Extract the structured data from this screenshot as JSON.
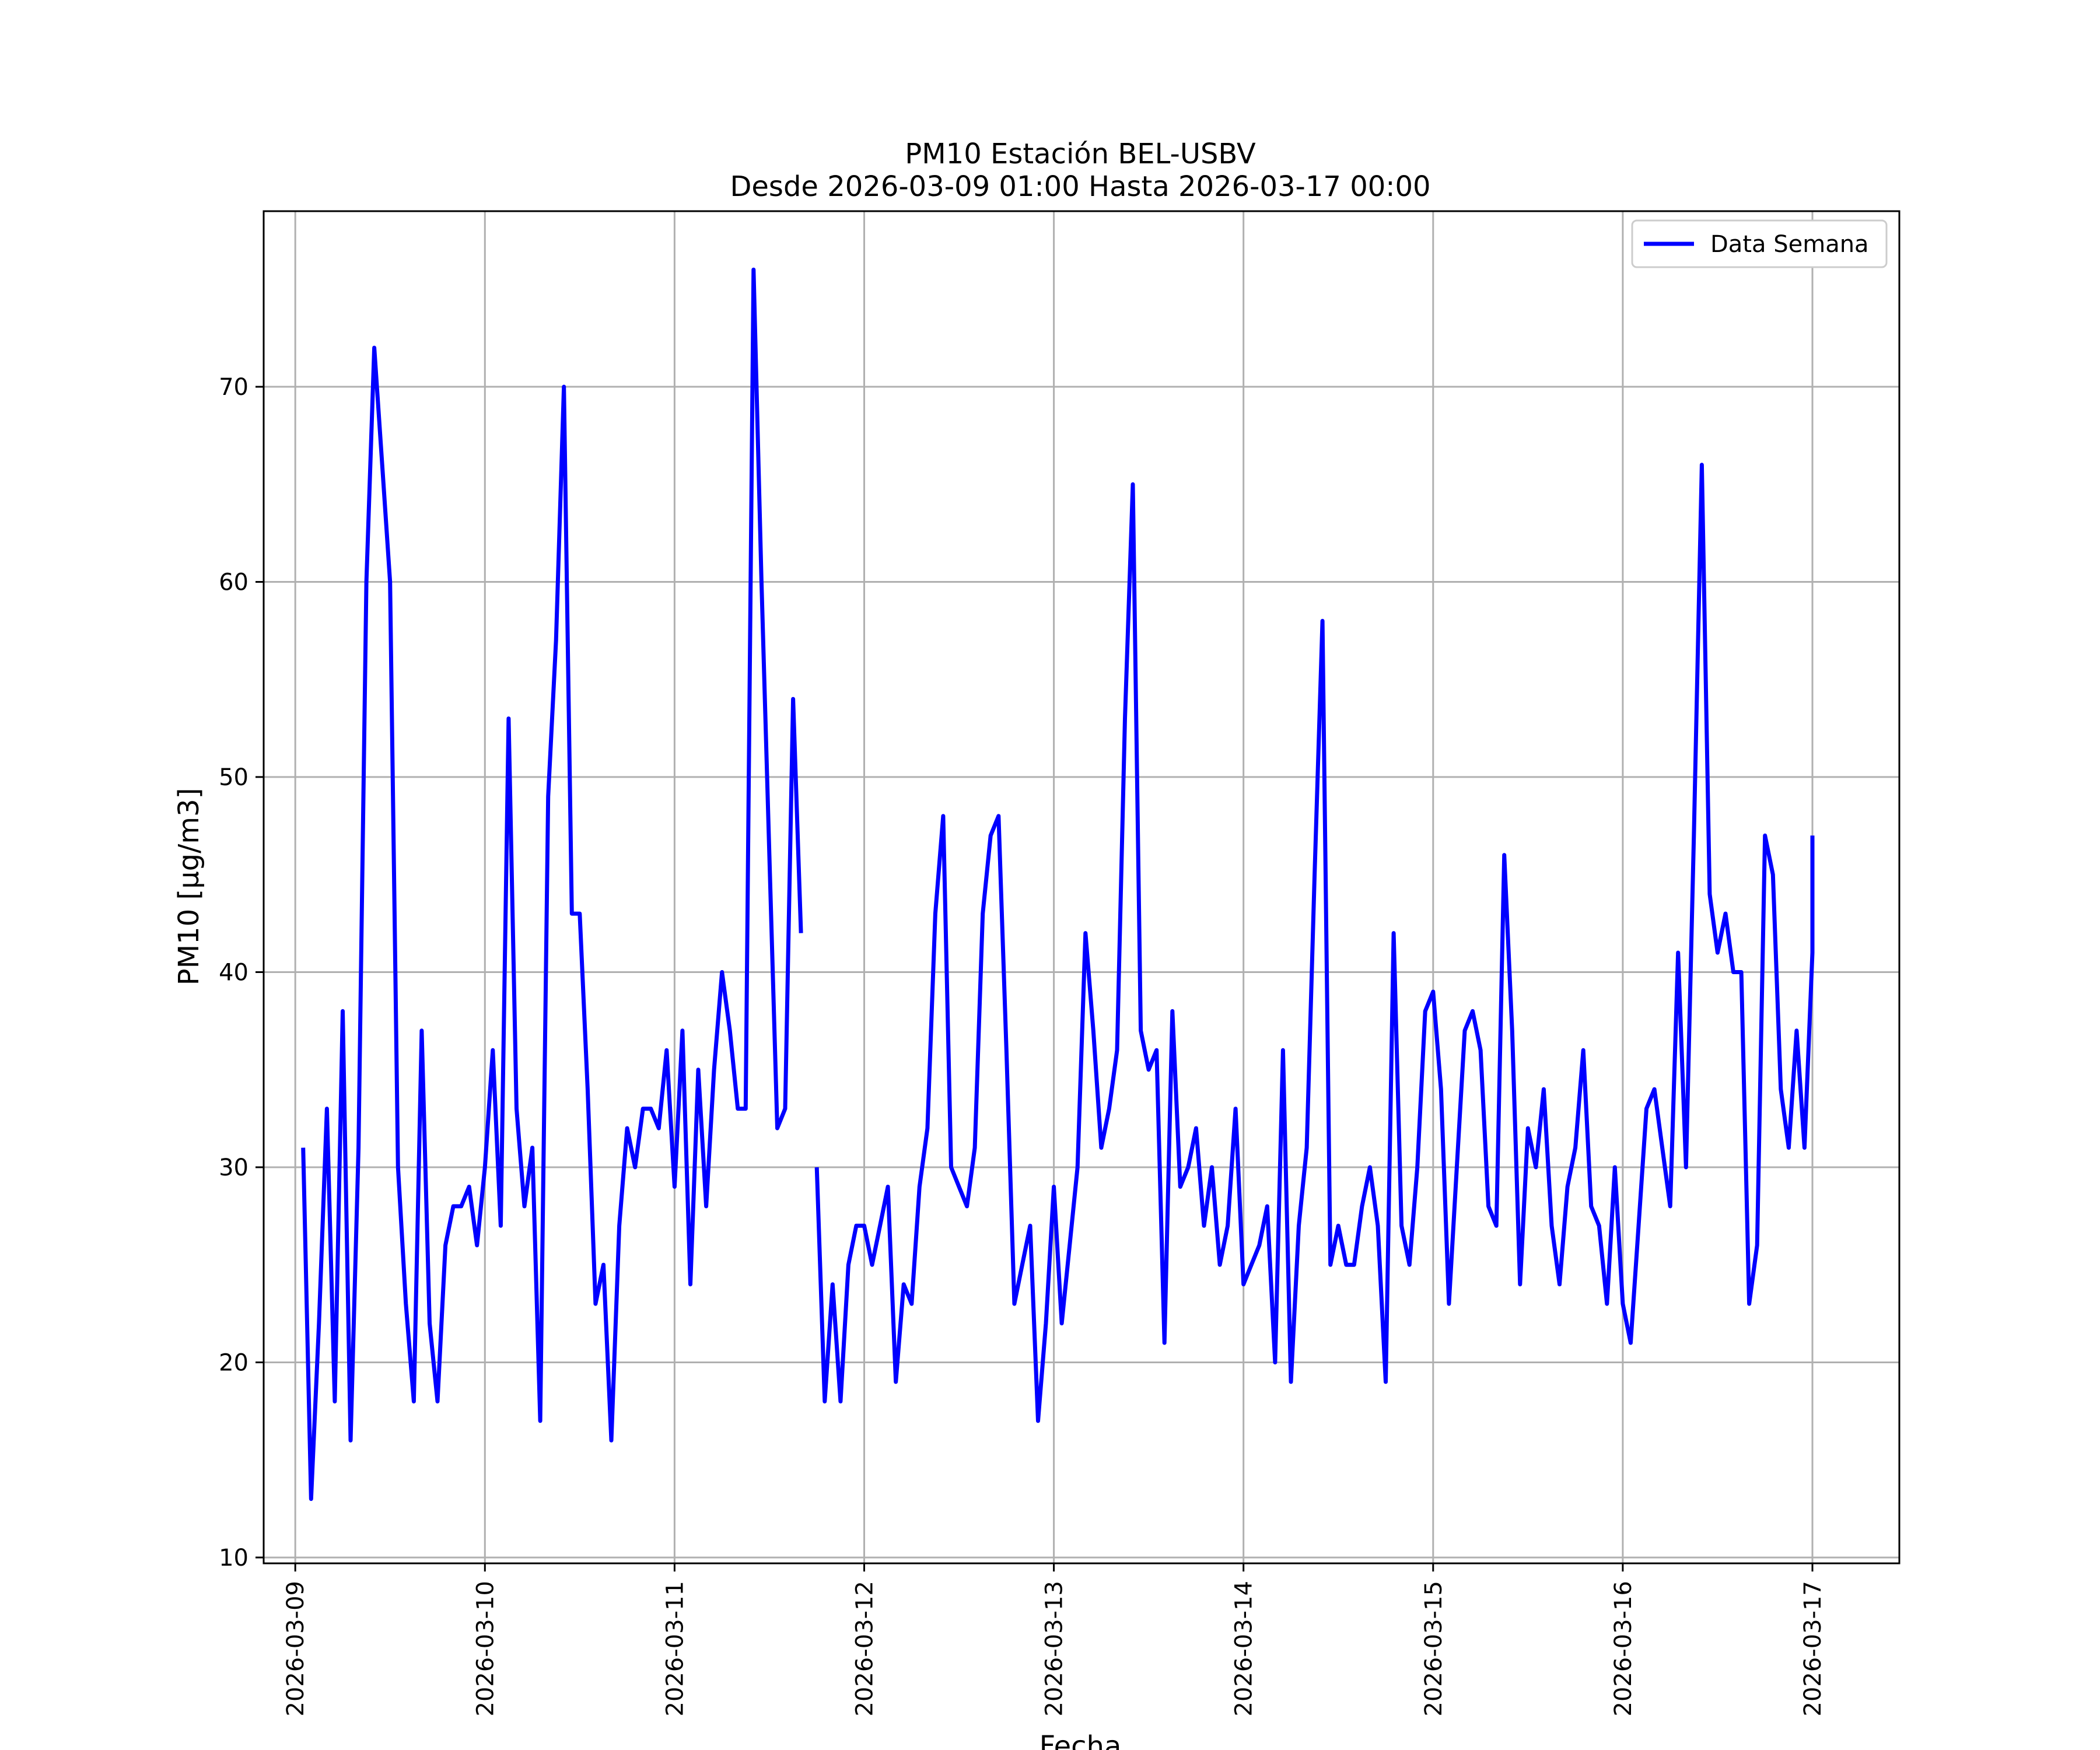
{
  "chart_data": {
    "type": "line",
    "title": "PM10 Estación BEL-USBV",
    "subtitle": "Desde 2026-03-09 01:00 Hasta 2026-03-17 00:00",
    "xlabel": "Fecha",
    "ylabel": "PM10 [μg/m3]",
    "ylim": [
      9.7,
      79
    ],
    "xlim": [
      "2026-03-08 20:00",
      "2026-03-17 11:00"
    ],
    "grid": true,
    "legend_position": "upper right",
    "x_ticks": [
      "2026-03-09",
      "2026-03-10",
      "2026-03-11",
      "2026-03-12",
      "2026-03-13",
      "2026-03-14",
      "2026-03-15",
      "2026-03-16",
      "2026-03-17"
    ],
    "y_ticks": [
      10,
      20,
      30,
      40,
      50,
      60,
      70
    ],
    "series": [
      {
        "name": "Data Semana",
        "color": "#0000ff",
        "points": [
          [
            "2026-03-09 01:00",
            31
          ],
          [
            "2026-03-09 02:00",
            13
          ],
          [
            "2026-03-09 03:00",
            22
          ],
          [
            "2026-03-09 04:00",
            33
          ],
          [
            "2026-03-09 05:00",
            18
          ],
          [
            "2026-03-09 06:00",
            38
          ],
          [
            "2026-03-09 07:00",
            16
          ],
          [
            "2026-03-09 08:00",
            31
          ],
          [
            "2026-03-09 09:00",
            60
          ],
          [
            "2026-03-09 10:00",
            72
          ],
          [
            "2026-03-09 11:00",
            66
          ],
          [
            "2026-03-09 12:00",
            60
          ],
          [
            "2026-03-09 13:00",
            30
          ],
          [
            "2026-03-09 14:00",
            23
          ],
          [
            "2026-03-09 15:00",
            18
          ],
          [
            "2026-03-09 16:00",
            37
          ],
          [
            "2026-03-09 17:00",
            22
          ],
          [
            "2026-03-09 18:00",
            18
          ],
          [
            "2026-03-09 19:00",
            26
          ],
          [
            "2026-03-09 20:00",
            28
          ],
          [
            "2026-03-09 21:00",
            28
          ],
          [
            "2026-03-09 22:00",
            29
          ],
          [
            "2026-03-09 23:00",
            26
          ],
          [
            "2026-03-10 00:00",
            30
          ],
          [
            "2026-03-10 01:00",
            36
          ],
          [
            "2026-03-10 02:00",
            27
          ],
          [
            "2026-03-10 03:00",
            53
          ],
          [
            "2026-03-10 04:00",
            33
          ],
          [
            "2026-03-10 05:00",
            28
          ],
          [
            "2026-03-10 06:00",
            31
          ],
          [
            "2026-03-10 07:00",
            17
          ],
          [
            "2026-03-10 08:00",
            49
          ],
          [
            "2026-03-10 09:00",
            57
          ],
          [
            "2026-03-10 10:00",
            70
          ],
          [
            "2026-03-10 11:00",
            43
          ],
          [
            "2026-03-10 12:00",
            43
          ],
          [
            "2026-03-10 13:00",
            34
          ],
          [
            "2026-03-10 14:00",
            23
          ],
          [
            "2026-03-10 15:00",
            25
          ],
          [
            "2026-03-10 16:00",
            16
          ],
          [
            "2026-03-10 17:00",
            27
          ],
          [
            "2026-03-10 18:00",
            32
          ],
          [
            "2026-03-10 19:00",
            30
          ],
          [
            "2026-03-10 20:00",
            33
          ],
          [
            "2026-03-10 21:00",
            33
          ],
          [
            "2026-03-10 22:00",
            32
          ],
          [
            "2026-03-10 23:00",
            36
          ],
          [
            "2026-03-11 00:00",
            29
          ],
          [
            "2026-03-11 01:00",
            37
          ],
          [
            "2026-03-11 02:00",
            24
          ],
          [
            "2026-03-11 03:00",
            35
          ],
          [
            "2026-03-11 04:00",
            28
          ],
          [
            "2026-03-11 05:00",
            35
          ],
          [
            "2026-03-11 06:00",
            40
          ],
          [
            "2026-03-11 07:00",
            37
          ],
          [
            "2026-03-11 08:00",
            33
          ],
          [
            "2026-03-11 09:00",
            33
          ],
          [
            "2026-03-11 10:00",
            76
          ],
          [
            "2026-03-11 11:00",
            60
          ],
          [
            "2026-03-11 12:00",
            46
          ],
          [
            "2026-03-11 13:00",
            32
          ],
          [
            "2026-03-11 14:00",
            33
          ],
          [
            "2026-03-11 15:00",
            54
          ],
          [
            "2026-03-11 16:00",
            42
          ],
          [
            "2026-03-11 17:00",
            null
          ],
          [
            "2026-03-11 18:00",
            30
          ],
          [
            "2026-03-11 19:00",
            18
          ],
          [
            "2026-03-11 20:00",
            24
          ],
          [
            "2026-03-11 21:00",
            18
          ],
          [
            "2026-03-11 22:00",
            25
          ],
          [
            "2026-03-11 23:00",
            27
          ],
          [
            "2026-03-12 00:00",
            27
          ],
          [
            "2026-03-12 01:00",
            25
          ],
          [
            "2026-03-12 02:00",
            27
          ],
          [
            "2026-03-12 03:00",
            29
          ],
          [
            "2026-03-12 04:00",
            19
          ],
          [
            "2026-03-12 05:00",
            24
          ],
          [
            "2026-03-12 06:00",
            23
          ],
          [
            "2026-03-12 07:00",
            29
          ],
          [
            "2026-03-12 08:00",
            32
          ],
          [
            "2026-03-12 09:00",
            43
          ],
          [
            "2026-03-12 10:00",
            48
          ],
          [
            "2026-03-12 11:00",
            30
          ],
          [
            "2026-03-12 12:00",
            29
          ],
          [
            "2026-03-12 13:00",
            28
          ],
          [
            "2026-03-12 14:00",
            31
          ],
          [
            "2026-03-12 15:00",
            43
          ],
          [
            "2026-03-12 16:00",
            47
          ],
          [
            "2026-03-12 17:00",
            48
          ],
          [
            "2026-03-12 18:00",
            36
          ],
          [
            "2026-03-12 19:00",
            23
          ],
          [
            "2026-03-12 20:00",
            25
          ],
          [
            "2026-03-12 21:00",
            27
          ],
          [
            "2026-03-12 22:00",
            17
          ],
          [
            "2026-03-12 23:00",
            22
          ],
          [
            "2026-03-13 00:00",
            29
          ],
          [
            "2026-03-13 01:00",
            22
          ],
          [
            "2026-03-13 02:00",
            26
          ],
          [
            "2026-03-13 03:00",
            30
          ],
          [
            "2026-03-13 04:00",
            42
          ],
          [
            "2026-03-13 05:00",
            37
          ],
          [
            "2026-03-13 06:00",
            31
          ],
          [
            "2026-03-13 07:00",
            33
          ],
          [
            "2026-03-13 08:00",
            36
          ],
          [
            "2026-03-13 09:00",
            53
          ],
          [
            "2026-03-13 10:00",
            65
          ],
          [
            "2026-03-13 11:00",
            37
          ],
          [
            "2026-03-13 12:00",
            35
          ],
          [
            "2026-03-13 13:00",
            36
          ],
          [
            "2026-03-13 14:00",
            21
          ],
          [
            "2026-03-13 15:00",
            38
          ],
          [
            "2026-03-13 16:00",
            29
          ],
          [
            "2026-03-13 17:00",
            30
          ],
          [
            "2026-03-13 18:00",
            32
          ],
          [
            "2026-03-13 19:00",
            27
          ],
          [
            "2026-03-13 20:00",
            30
          ],
          [
            "2026-03-13 21:00",
            25
          ],
          [
            "2026-03-13 22:00",
            27
          ],
          [
            "2026-03-13 23:00",
            33
          ],
          [
            "2026-03-14 00:00",
            24
          ],
          [
            "2026-03-14 01:00",
            25
          ],
          [
            "2026-03-14 02:00",
            26
          ],
          [
            "2026-03-14 03:00",
            28
          ],
          [
            "2026-03-14 04:00",
            20
          ],
          [
            "2026-03-14 05:00",
            36
          ],
          [
            "2026-03-14 06:00",
            19
          ],
          [
            "2026-03-14 07:00",
            27
          ],
          [
            "2026-03-14 08:00",
            31
          ],
          [
            "2026-03-14 09:00",
            45
          ],
          [
            "2026-03-14 10:00",
            58
          ],
          [
            "2026-03-14 11:00",
            25
          ],
          [
            "2026-03-14 12:00",
            27
          ],
          [
            "2026-03-14 13:00",
            25
          ],
          [
            "2026-03-14 14:00",
            25
          ],
          [
            "2026-03-14 15:00",
            28
          ],
          [
            "2026-03-14 16:00",
            30
          ],
          [
            "2026-03-14 17:00",
            27
          ],
          [
            "2026-03-14 18:00",
            19
          ],
          [
            "2026-03-14 19:00",
            42
          ],
          [
            "2026-03-14 20:00",
            27
          ],
          [
            "2026-03-14 21:00",
            25
          ],
          [
            "2026-03-14 22:00",
            30
          ],
          [
            "2026-03-14 23:00",
            38
          ],
          [
            "2026-03-15 00:00",
            39
          ],
          [
            "2026-03-15 01:00",
            34
          ],
          [
            "2026-03-15 02:00",
            23
          ],
          [
            "2026-03-15 03:00",
            30
          ],
          [
            "2026-03-15 04:00",
            37
          ],
          [
            "2026-03-15 05:00",
            38
          ],
          [
            "2026-03-15 06:00",
            36
          ],
          [
            "2026-03-15 07:00",
            28
          ],
          [
            "2026-03-15 08:00",
            27
          ],
          [
            "2026-03-15 09:00",
            46
          ],
          [
            "2026-03-15 10:00",
            37
          ],
          [
            "2026-03-15 11:00",
            24
          ],
          [
            "2026-03-15 12:00",
            32
          ],
          [
            "2026-03-15 13:00",
            30
          ],
          [
            "2026-03-15 14:00",
            34
          ],
          [
            "2026-03-15 15:00",
            27
          ],
          [
            "2026-03-15 16:00",
            24
          ],
          [
            "2026-03-15 17:00",
            29
          ],
          [
            "2026-03-15 18:00",
            31
          ],
          [
            "2026-03-15 19:00",
            36
          ],
          [
            "2026-03-15 20:00",
            28
          ],
          [
            "2026-03-15 21:00",
            27
          ],
          [
            "2026-03-15 22:00",
            23
          ],
          [
            "2026-03-15 23:00",
            30
          ],
          [
            "2026-03-16 00:00",
            23
          ],
          [
            "2026-03-16 01:00",
            21
          ],
          [
            "2026-03-16 02:00",
            27
          ],
          [
            "2026-03-16 03:00",
            33
          ],
          [
            "2026-03-16 04:00",
            34
          ],
          [
            "2026-03-16 05:00",
            31
          ],
          [
            "2026-03-16 06:00",
            28
          ],
          [
            "2026-03-16 07:00",
            41
          ],
          [
            "2026-03-16 08:00",
            30
          ],
          [
            "2026-03-16 09:00",
            47
          ],
          [
            "2026-03-16 10:00",
            66
          ],
          [
            "2026-03-16 11:00",
            44
          ],
          [
            "2026-03-16 12:00",
            41
          ],
          [
            "2026-03-16 13:00",
            43
          ],
          [
            "2026-03-16 14:00",
            40
          ],
          [
            "2026-03-16 15:00",
            40
          ],
          [
            "2026-03-16 16:00",
            23
          ],
          [
            "2026-03-16 17:00",
            26
          ],
          [
            "2026-03-16 18:00",
            47
          ],
          [
            "2026-03-16 19:00",
            45
          ],
          [
            "2026-03-16 20:00",
            34
          ],
          [
            "2026-03-16 21:00",
            31
          ],
          [
            "2026-03-16 22:00",
            37
          ],
          [
            "2026-03-16 23:00",
            31
          ],
          [
            "2026-03-17 00:00",
            41
          ],
          [
            "2026-03-17 00:00",
            47
          ]
        ]
      }
    ]
  }
}
